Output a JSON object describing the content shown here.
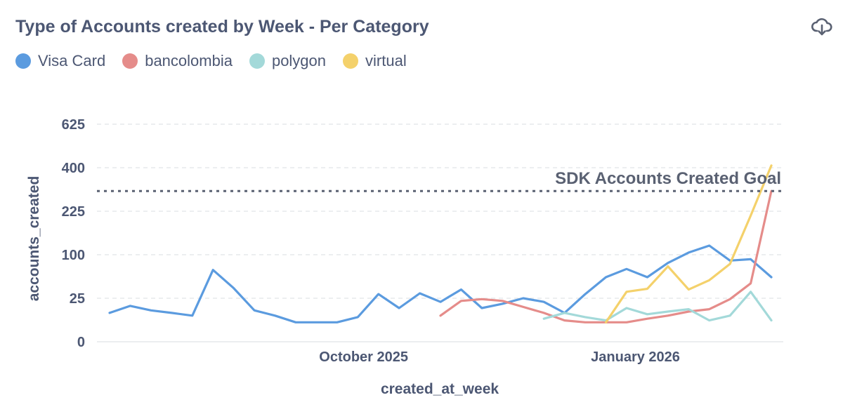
{
  "header": {
    "title": "Type of Accounts created by Week - Per Category",
    "download_icon": "cloud-download-icon"
  },
  "colors": {
    "Visa Card": "#5b9bdf",
    "bancolombia": "#e58c8a",
    "polygon": "#a3d9d9",
    "virtual": "#f4d16b",
    "goal_line": "#5a6172",
    "grid": "#e6e8ec"
  },
  "chart_data": {
    "type": "line",
    "title": "Type of Accounts created by Week - Per Category",
    "xlabel": "created_at_week",
    "ylabel": "accounts_created",
    "x_tick_labels": [
      "October 2025",
      "January 2026"
    ],
    "y_scale": "sqrt",
    "y_ticks": [
      0,
      25,
      100,
      225,
      400,
      625
    ],
    "ylim": [
      0,
      625
    ],
    "grid": true,
    "legend_position": "top-left",
    "goal": {
      "label": "SDK Accounts Created Goal",
      "value": 300
    },
    "series": [
      {
        "name": "Visa Card",
        "points": [
          [
            "2025-07-07",
            11
          ],
          [
            "2025-07-14",
            17
          ],
          [
            "2025-07-21",
            13
          ],
          [
            "2025-07-28",
            11
          ],
          [
            "2025-08-04",
            9
          ],
          [
            "2025-08-11",
            68
          ],
          [
            "2025-08-18",
            38
          ],
          [
            "2025-08-25",
            13
          ],
          [
            "2025-09-01",
            9
          ],
          [
            "2025-09-08",
            5
          ],
          [
            "2025-09-15",
            5
          ],
          [
            "2025-09-22",
            5
          ],
          [
            "2025-09-29",
            8
          ],
          [
            "2025-10-06",
            30
          ],
          [
            "2025-10-13",
            15
          ],
          [
            "2025-10-20",
            31
          ],
          [
            "2025-10-27",
            21
          ],
          [
            "2025-11-03",
            36
          ],
          [
            "2025-11-10",
            15
          ],
          [
            "2025-11-17",
            19
          ],
          [
            "2025-11-24",
            25
          ],
          [
            "2025-12-01",
            21
          ],
          [
            "2025-12-08",
            11
          ],
          [
            "2025-12-15",
            30
          ],
          [
            "2025-12-22",
            55
          ],
          [
            "2025-12-29",
            70
          ],
          [
            "2026-01-05",
            55
          ],
          [
            "2026-01-12",
            82
          ],
          [
            "2026-01-19",
            105
          ],
          [
            "2026-01-26",
            122
          ],
          [
            "2026-02-02",
            87
          ],
          [
            "2026-02-09",
            90
          ],
          [
            "2026-02-16",
            55
          ]
        ]
      },
      {
        "name": "bancolombia",
        "points": [
          [
            "2025-10-27",
            9
          ],
          [
            "2025-11-03",
            22
          ],
          [
            "2025-11-10",
            24
          ],
          [
            "2025-11-17",
            22
          ],
          [
            "2025-11-24",
            16
          ],
          [
            "2025-12-01",
            11
          ],
          [
            "2025-12-08",
            6
          ],
          [
            "2025-12-15",
            5
          ],
          [
            "2025-12-22",
            5
          ],
          [
            "2025-12-29",
            5
          ],
          [
            "2026-01-05",
            7
          ],
          [
            "2026-01-12",
            9
          ],
          [
            "2026-01-19",
            12
          ],
          [
            "2026-01-26",
            14
          ],
          [
            "2026-02-02",
            24
          ],
          [
            "2026-02-09",
            45
          ],
          [
            "2026-02-16",
            300
          ]
        ]
      },
      {
        "name": "polygon",
        "points": [
          [
            "2025-12-01",
            7
          ],
          [
            "2025-12-08",
            11
          ],
          [
            "2025-12-15",
            8
          ],
          [
            "2025-12-22",
            6
          ],
          [
            "2025-12-29",
            15
          ],
          [
            "2026-01-05",
            10
          ],
          [
            "2026-01-12",
            12
          ],
          [
            "2026-01-19",
            14
          ],
          [
            "2026-01-26",
            6
          ],
          [
            "2026-02-02",
            9
          ],
          [
            "2026-02-09",
            33
          ],
          [
            "2026-02-16",
            6
          ]
        ]
      },
      {
        "name": "virtual",
        "points": [
          [
            "2025-12-22",
            5
          ],
          [
            "2025-12-29",
            33
          ],
          [
            "2026-01-05",
            37
          ],
          [
            "2026-01-12",
            75
          ],
          [
            "2026-01-19",
            36
          ],
          [
            "2026-01-26",
            50
          ],
          [
            "2026-02-02",
            80
          ],
          [
            "2026-02-09",
            210
          ],
          [
            "2026-02-16",
            410
          ]
        ]
      }
    ]
  }
}
